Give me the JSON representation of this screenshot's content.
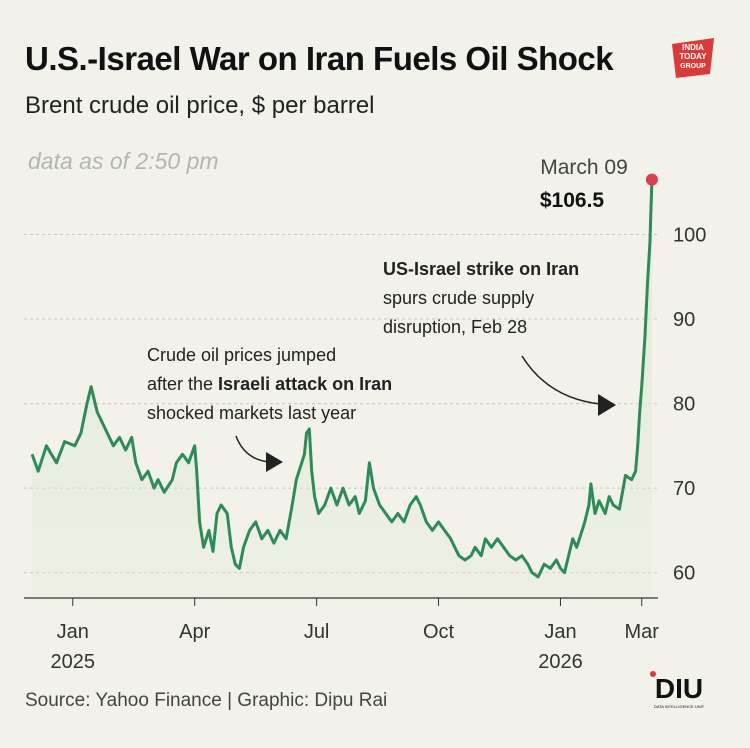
{
  "header": {
    "title": "U.S.-Israel War on Iran Fuels Oil Shock",
    "subtitle": "Brent crude oil price, $ per barrel",
    "as_of": "data as of 2:50 pm"
  },
  "logo_text": "INDIA TODAY GROUP",
  "footer": {
    "source": "Source: Yahoo Finance | Graphic: Dipu Rai",
    "brand": "DIU",
    "brand_sub": "DATA INTELLIGENCE UNIT"
  },
  "colors": {
    "line": "#2e8b57",
    "fill": "#e0ebd6",
    "marker": "#d9414f",
    "grid": "#c8c8c2",
    "background": "#f2f1ea"
  },
  "chart_data": {
    "type": "line",
    "title": "U.S.-Israel War on Iran Fuels Oil Shock",
    "subtitle": "Brent crude oil price, $ per barrel",
    "xlabel": "",
    "ylabel": "",
    "ylim": [
      57,
      110
    ],
    "xlim": [
      -1.2,
      14.4
    ],
    "grid": "horizontal dashed",
    "y_ticks": [
      60,
      70,
      80,
      90,
      100
    ],
    "y_tick_labels": [
      "60",
      "70",
      "80",
      "90",
      "100"
    ],
    "x_ticks": [
      {
        "x": 0,
        "label": "Jan",
        "year": "2025"
      },
      {
        "x": 3,
        "label": "Apr",
        "year": ""
      },
      {
        "x": 6,
        "label": "Jul",
        "year": ""
      },
      {
        "x": 9,
        "label": "Oct",
        "year": ""
      },
      {
        "x": 12,
        "label": "Jan",
        "year": "2026"
      },
      {
        "x": 14,
        "label": "Mar",
        "year": ""
      }
    ],
    "series": [
      {
        "values_xy": [
          [
            -1.0,
            74
          ],
          [
            -0.85,
            72
          ],
          [
            -0.65,
            75
          ],
          [
            -0.4,
            73
          ],
          [
            -0.2,
            75.5
          ],
          [
            0.05,
            75
          ],
          [
            0.2,
            76.5
          ],
          [
            0.35,
            80
          ],
          [
            0.45,
            82
          ],
          [
            0.6,
            79
          ],
          [
            0.8,
            77
          ],
          [
            1.0,
            75
          ],
          [
            1.15,
            76
          ],
          [
            1.3,
            74.5
          ],
          [
            1.45,
            76
          ],
          [
            1.55,
            73
          ],
          [
            1.7,
            71
          ],
          [
            1.85,
            72
          ],
          [
            2.0,
            70
          ],
          [
            2.1,
            71
          ],
          [
            2.25,
            69.5
          ],
          [
            2.45,
            71
          ],
          [
            2.55,
            73
          ],
          [
            2.7,
            74
          ],
          [
            2.85,
            73
          ],
          [
            3.0,
            75
          ],
          [
            3.05,
            72
          ],
          [
            3.12,
            66
          ],
          [
            3.22,
            63
          ],
          [
            3.35,
            65
          ],
          [
            3.45,
            62.5
          ],
          [
            3.55,
            67
          ],
          [
            3.65,
            68
          ],
          [
            3.8,
            67
          ],
          [
            3.9,
            63
          ],
          [
            4.0,
            61
          ],
          [
            4.1,
            60.5
          ],
          [
            4.2,
            63
          ],
          [
            4.35,
            65
          ],
          [
            4.5,
            66
          ],
          [
            4.65,
            64
          ],
          [
            4.8,
            65
          ],
          [
            4.95,
            63.5
          ],
          [
            5.1,
            65
          ],
          [
            5.25,
            64
          ],
          [
            5.4,
            68
          ],
          [
            5.5,
            71
          ],
          [
            5.6,
            72.5
          ],
          [
            5.7,
            74
          ],
          [
            5.75,
            76.5
          ],
          [
            5.82,
            77
          ],
          [
            5.88,
            72
          ],
          [
            5.95,
            69
          ],
          [
            6.05,
            67
          ],
          [
            6.2,
            68
          ],
          [
            6.35,
            70
          ],
          [
            6.5,
            68
          ],
          [
            6.65,
            70
          ],
          [
            6.8,
            68
          ],
          [
            6.95,
            69
          ],
          [
            7.05,
            67
          ],
          [
            7.2,
            68.5
          ],
          [
            7.3,
            73
          ],
          [
            7.4,
            70
          ],
          [
            7.55,
            68
          ],
          [
            7.7,
            67
          ],
          [
            7.85,
            66
          ],
          [
            8.0,
            67
          ],
          [
            8.15,
            66
          ],
          [
            8.3,
            68
          ],
          [
            8.45,
            69
          ],
          [
            8.55,
            68
          ],
          [
            8.7,
            66
          ],
          [
            8.85,
            65
          ],
          [
            9.0,
            66
          ],
          [
            9.15,
            65
          ],
          [
            9.3,
            64
          ],
          [
            9.4,
            63
          ],
          [
            9.5,
            62
          ],
          [
            9.65,
            61.5
          ],
          [
            9.8,
            62
          ],
          [
            9.9,
            63
          ],
          [
            10.05,
            62
          ],
          [
            10.15,
            64
          ],
          [
            10.3,
            63
          ],
          [
            10.45,
            64
          ],
          [
            10.6,
            63
          ],
          [
            10.75,
            62
          ],
          [
            10.9,
            61.5
          ],
          [
            11.05,
            62
          ],
          [
            11.2,
            61
          ],
          [
            11.3,
            60
          ],
          [
            11.45,
            59.5
          ],
          [
            11.6,
            61
          ],
          [
            11.75,
            60.5
          ],
          [
            11.9,
            61.5
          ],
          [
            12.0,
            60.5
          ],
          [
            12.1,
            60
          ],
          [
            12.2,
            62
          ],
          [
            12.3,
            64
          ],
          [
            12.4,
            63
          ],
          [
            12.5,
            64.5
          ],
          [
            12.6,
            66
          ],
          [
            12.7,
            68
          ],
          [
            12.75,
            70.5
          ],
          [
            12.85,
            67
          ],
          [
            12.95,
            68.5
          ],
          [
            13.1,
            67
          ],
          [
            13.2,
            69
          ],
          [
            13.3,
            68
          ],
          [
            13.45,
            67.5
          ],
          [
            13.6,
            71.5
          ],
          [
            13.75,
            71
          ],
          [
            13.85,
            72
          ],
          [
            13.9,
            75
          ],
          [
            13.95,
            79
          ],
          [
            14.0,
            82
          ],
          [
            14.08,
            88
          ],
          [
            14.14,
            94
          ],
          [
            14.2,
            99
          ],
          [
            14.25,
            106.5
          ]
        ]
      }
    ],
    "highlight": {
      "x": 14.25,
      "y": 106.5,
      "date": "March 09",
      "value": "$106.5"
    },
    "annotations": [
      {
        "line1": "Crude oil prices jumped",
        "line2_pre": "after the ",
        "line2_bold": "Israeli attack on Iran",
        "line3": "shocked markets last year"
      },
      {
        "line1_bold": "US-Israel strike on Iran",
        "line2": "spurs crude supply",
        "line3": "disruption, Feb 28"
      }
    ]
  }
}
